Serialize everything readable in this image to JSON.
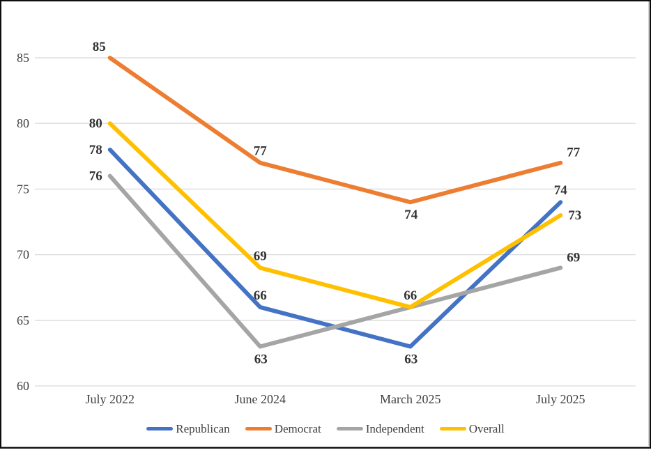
{
  "chart_data": {
    "type": "line",
    "categories": [
      "July 2022",
      "June 2024",
      "March 2025",
      "July 2025"
    ],
    "series": [
      {
        "name": "Republican",
        "color": "#4472C4",
        "values": [
          78,
          66,
          63,
          74
        ],
        "label_placements": [
          "left",
          "above",
          "below",
          "above"
        ]
      },
      {
        "name": "Democrat",
        "color": "#ED7D31",
        "values": [
          85,
          77,
          74,
          77
        ],
        "label_placements": [
          "above-left",
          "above",
          "below",
          "above-right"
        ]
      },
      {
        "name": "Independent",
        "color": "#A5A5A5",
        "values": [
          76,
          63,
          66,
          69
        ],
        "label_placements": [
          "left",
          "below",
          "none",
          "above-right"
        ]
      },
      {
        "name": "Overall",
        "color": "#FFC000",
        "values": [
          80,
          69,
          66,
          73
        ],
        "label_placements": [
          "left",
          "above",
          "above",
          "right"
        ]
      }
    ],
    "ylim": [
      60,
      85
    ],
    "yticks": [
      60,
      65,
      70,
      75,
      80,
      85
    ],
    "grid": true,
    "legend_position": "bottom",
    "style": {
      "background": "#FFFFFF",
      "frame_border": "#0D0D0D",
      "gridline_color": "#D9D9D9",
      "axis_text_color": "#404040",
      "data_label_color": "#333333"
    }
  }
}
